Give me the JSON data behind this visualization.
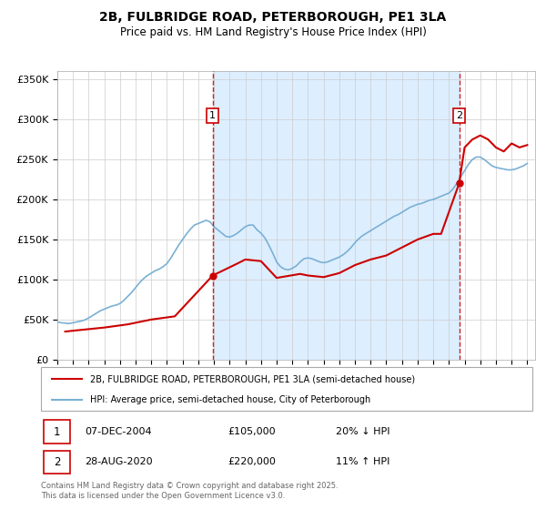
{
  "title": "2B, FULBRIDGE ROAD, PETERBOROUGH, PE1 3LA",
  "subtitle": "Price paid vs. HM Land Registry's House Price Index (HPI)",
  "legend_line1": "2B, FULBRIDGE ROAD, PETERBOROUGH, PE1 3LA (semi-detached house)",
  "legend_line2": "HPI: Average price, semi-detached house, City of Peterborough",
  "footer": "Contains HM Land Registry data © Crown copyright and database right 2025.\nThis data is licensed under the Open Government Licence v3.0.",
  "price_color": "#cc0000",
  "hpi_color": "#7ab0d4",
  "vline_color": "#cc0000",
  "annotation_box_color": "#cc0000",
  "span_color": "#ddeeff",
  "xlim": [
    1995.0,
    2025.5
  ],
  "ylim": [
    0,
    360000
  ],
  "yticks": [
    0,
    50000,
    100000,
    150000,
    200000,
    250000,
    300000,
    350000
  ],
  "ytick_labels": [
    "£0",
    "£50K",
    "£100K",
    "£150K",
    "£200K",
    "£250K",
    "£300K",
    "£350K"
  ],
  "sale1": {
    "year": 2004.92,
    "price": 105000,
    "label": "1",
    "date": "07-DEC-2004",
    "price_str": "£105,000",
    "hpi_pct": "20% ↓ HPI"
  },
  "sale2": {
    "year": 2020.65,
    "price": 220000,
    "label": "2",
    "date": "28-AUG-2020",
    "price_str": "£220,000",
    "hpi_pct": "11% ↑ HPI"
  },
  "hpi_data": {
    "years": [
      1995.0,
      1995.25,
      1995.5,
      1995.75,
      1996.0,
      1996.25,
      1996.5,
      1996.75,
      1997.0,
      1997.25,
      1997.5,
      1997.75,
      1998.0,
      1998.25,
      1998.5,
      1998.75,
      1999.0,
      1999.25,
      1999.5,
      1999.75,
      2000.0,
      2000.25,
      2000.5,
      2000.75,
      2001.0,
      2001.25,
      2001.5,
      2001.75,
      2002.0,
      2002.25,
      2002.5,
      2002.75,
      2003.0,
      2003.25,
      2003.5,
      2003.75,
      2004.0,
      2004.25,
      2004.5,
      2004.75,
      2005.0,
      2005.25,
      2005.5,
      2005.75,
      2006.0,
      2006.25,
      2006.5,
      2006.75,
      2007.0,
      2007.25,
      2007.5,
      2007.75,
      2008.0,
      2008.25,
      2008.5,
      2008.75,
      2009.0,
      2009.25,
      2009.5,
      2009.75,
      2010.0,
      2010.25,
      2010.5,
      2010.75,
      2011.0,
      2011.25,
      2011.5,
      2011.75,
      2012.0,
      2012.25,
      2012.5,
      2012.75,
      2013.0,
      2013.25,
      2013.5,
      2013.75,
      2014.0,
      2014.25,
      2014.5,
      2014.75,
      2015.0,
      2015.25,
      2015.5,
      2015.75,
      2016.0,
      2016.25,
      2016.5,
      2016.75,
      2017.0,
      2017.25,
      2017.5,
      2017.75,
      2018.0,
      2018.25,
      2018.5,
      2018.75,
      2019.0,
      2019.25,
      2019.5,
      2019.75,
      2020.0,
      2020.25,
      2020.5,
      2020.75,
      2021.0,
      2021.25,
      2021.5,
      2021.75,
      2022.0,
      2022.25,
      2022.5,
      2022.75,
      2023.0,
      2023.25,
      2023.5,
      2023.75,
      2024.0,
      2024.25,
      2024.5,
      2024.75,
      2025.0
    ],
    "values": [
      47000,
      46000,
      45500,
      45000,
      46000,
      47000,
      48000,
      49500,
      52000,
      55000,
      58000,
      61000,
      63000,
      65000,
      67000,
      68000,
      70000,
      74000,
      79000,
      84000,
      90000,
      96000,
      101000,
      105000,
      108000,
      111000,
      113000,
      116000,
      120000,
      127000,
      135000,
      143000,
      150000,
      157000,
      163000,
      168000,
      170000,
      172000,
      174000,
      172000,
      166000,
      162000,
      158000,
      154000,
      153000,
      155000,
      158000,
      162000,
      166000,
      168000,
      168000,
      162000,
      158000,
      152000,
      143000,
      133000,
      122000,
      116000,
      113000,
      112000,
      114000,
      117000,
      122000,
      126000,
      127000,
      126000,
      124000,
      122000,
      121000,
      122000,
      124000,
      126000,
      128000,
      131000,
      135000,
      140000,
      146000,
      151000,
      155000,
      158000,
      161000,
      164000,
      167000,
      170000,
      173000,
      176000,
      179000,
      181000,
      184000,
      187000,
      190000,
      192000,
      194000,
      195000,
      197000,
      199000,
      200000,
      202000,
      204000,
      206000,
      208000,
      213000,
      220000,
      228000,
      236000,
      244000,
      250000,
      253000,
      253000,
      250000,
      246000,
      242000,
      240000,
      239000,
      238000,
      237000,
      237000,
      238000,
      240000,
      242000,
      245000
    ]
  },
  "price_data": {
    "years": [
      1995.5,
      1996.0,
      1997.0,
      1998.0,
      1999.5,
      2001.0,
      2002.5,
      2004.92,
      2006.5,
      2007.0,
      2008.0,
      2009.0,
      2010.5,
      2011.0,
      2012.0,
      2013.0,
      2014.0,
      2015.0,
      2016.0,
      2017.0,
      2018.0,
      2019.0,
      2019.5,
      2020.65,
      2021.0,
      2021.5,
      2022.0,
      2022.5,
      2023.0,
      2023.5,
      2024.0,
      2024.5,
      2025.0
    ],
    "values": [
      35000,
      36000,
      38000,
      40000,
      44000,
      50000,
      54000,
      105000,
      120000,
      125000,
      123000,
      102000,
      107000,
      105000,
      103000,
      108000,
      118000,
      125000,
      130000,
      140000,
      150000,
      157000,
      157000,
      220000,
      265000,
      275000,
      280000,
      275000,
      265000,
      260000,
      270000,
      265000,
      268000
    ]
  }
}
